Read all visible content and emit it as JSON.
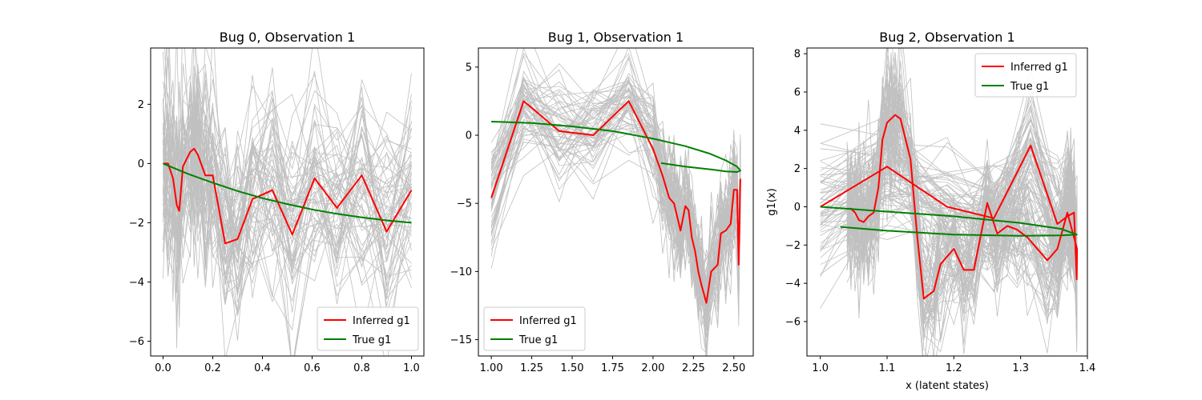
{
  "chart_data": [
    {
      "type": "line",
      "title": "Bug 0, Observation 1",
      "xlabel": "",
      "ylabel": "",
      "xlim": [
        -0.05,
        1.05
      ],
      "ylim": [
        -6.5,
        3.9
      ],
      "xticks": [
        0.0,
        0.2,
        0.4,
        0.6,
        0.8,
        1.0
      ],
      "xtick_labels": [
        "0.0",
        "0.2",
        "0.4",
        "0.6",
        "0.8",
        "1.0"
      ],
      "yticks": [
        -6,
        -4,
        -2,
        0,
        2
      ],
      "ytick_labels": [
        "−6",
        "−4",
        "−2",
        "0",
        "2"
      ],
      "legend": {
        "position": "lower-right",
        "entries": [
          "Inferred g1",
          "True g1"
        ]
      },
      "series": [
        {
          "name": "Inferred g1",
          "color": "#ff0000",
          "x": [
            0.0,
            0.02,
            0.04,
            0.055,
            0.065,
            0.08,
            0.11,
            0.125,
            0.14,
            0.17,
            0.2,
            0.25,
            0.3,
            0.36,
            0.44,
            0.52,
            0.61,
            0.7,
            0.8,
            0.9,
            1.0
          ],
          "y": [
            0.0,
            0.0,
            -0.5,
            -1.4,
            -1.6,
            -0.1,
            0.4,
            0.5,
            0.3,
            -0.4,
            -0.4,
            -2.7,
            -2.55,
            -1.2,
            -0.9,
            -2.4,
            -0.5,
            -1.5,
            -0.4,
            -2.3,
            -0.9
          ]
        },
        {
          "name": "True g1",
          "color": "#008000",
          "x": [
            0.0,
            0.1,
            0.2,
            0.3,
            0.4,
            0.5,
            0.6,
            0.7,
            0.8,
            0.9,
            1.0
          ],
          "y": [
            0.0,
            -0.35,
            -0.65,
            -0.93,
            -1.17,
            -1.37,
            -1.55,
            -1.7,
            -1.82,
            -1.92,
            -2.0
          ]
        }
      ],
      "samples": {
        "color": "#c0c0c0",
        "count": 60,
        "spread": 1.6,
        "seed": 11
      }
    },
    {
      "type": "line",
      "title": "Bug 1, Observation 1",
      "xlabel": "",
      "ylabel": "",
      "xlim": [
        0.92,
        2.62
      ],
      "ylim": [
        -16.2,
        6.4
      ],
      "xticks": [
        1.0,
        1.25,
        1.5,
        1.75,
        2.0,
        2.25,
        2.5
      ],
      "xtick_labels": [
        "1.00",
        "1.25",
        "1.50",
        "1.75",
        "2.00",
        "2.25",
        "2.50"
      ],
      "yticks": [
        -15,
        -10,
        -5,
        0,
        5
      ],
      "ytick_labels": [
        "−15",
        "−10",
        "−5",
        "0",
        "5"
      ],
      "legend": {
        "position": "lower-left",
        "entries": [
          "Inferred g1",
          "True g1"
        ]
      },
      "series": [
        {
          "name": "Inferred g1",
          "color": "#ff0000",
          "x": [
            1.0,
            1.2,
            1.42,
            1.63,
            1.85,
            2.0,
            2.06,
            2.1,
            2.13,
            2.15,
            2.17,
            2.2,
            2.22,
            2.24,
            2.26,
            2.28,
            2.3,
            2.33,
            2.36,
            2.4,
            2.42,
            2.45,
            2.48,
            2.5,
            2.52,
            2.53,
            2.54
          ],
          "y": [
            -4.6,
            2.5,
            0.3,
            0.0,
            2.5,
            -1.0,
            -3.0,
            -4.6,
            -5.0,
            -6.0,
            -7.0,
            -5.2,
            -5.5,
            -7.5,
            -8.5,
            -10.0,
            -11.0,
            -12.3,
            -10.0,
            -9.5,
            -7.2,
            -7.0,
            -6.5,
            -4.0,
            -4.0,
            -9.5,
            -3.2
          ]
        },
        {
          "name": "True g1",
          "color": "#008000",
          "x": [
            1.0,
            1.25,
            1.5,
            1.75,
            2.0,
            2.2,
            2.35,
            2.45,
            2.52,
            2.54,
            2.52,
            2.45,
            2.35,
            2.2,
            2.05
          ],
          "y": [
            1.0,
            0.9,
            0.65,
            0.3,
            -0.25,
            -0.8,
            -1.35,
            -1.85,
            -2.3,
            -2.6,
            -2.7,
            -2.65,
            -2.5,
            -2.3,
            -2.05
          ]
        }
      ],
      "samples": {
        "color": "#c0c0c0",
        "count": 60,
        "spread": 1.8,
        "seed": 23
      }
    },
    {
      "type": "line",
      "title": "Bug 2, Observation 1",
      "xlabel": "x (latent states)",
      "ylabel": "g1(x)",
      "xlim": [
        0.98,
        1.4
      ],
      "ylim": [
        -7.8,
        8.3
      ],
      "xticks": [
        1.0,
        1.1,
        1.2,
        1.3,
        1.4
      ],
      "xtick_labels": [
        "1.0",
        "1.1",
        "1.2",
        "1.3",
        "1.4"
      ],
      "yticks": [
        -6,
        -4,
        -2,
        0,
        2,
        4,
        6,
        8
      ],
      "ytick_labels": [
        "−6",
        "−4",
        "−2",
        "0",
        "2",
        "4",
        "6",
        "8"
      ],
      "legend": {
        "position": "top-right",
        "entries": [
          "Inferred g1",
          "True g1"
        ]
      },
      "series": [
        {
          "name": "Inferred g1",
          "color": "#ff0000",
          "x": [
            1.0,
            1.1,
            1.19,
            1.26,
            1.315,
            1.355,
            1.37,
            1.375,
            1.38,
            1.384,
            1.3845,
            1.37,
            1.355,
            1.34,
            1.31,
            1.295,
            1.28,
            1.265,
            1.25,
            1.23,
            1.215,
            1.2,
            1.18,
            1.17,
            1.155,
            1.145,
            1.135,
            1.12,
            1.112,
            1.106,
            1.1,
            1.093,
            1.087,
            1.08,
            1.072,
            1.065,
            1.058,
            1.052,
            1.046,
            1.04
          ],
          "y": [
            0.0,
            2.1,
            0.0,
            -0.6,
            3.2,
            -0.9,
            -0.5,
            -0.4,
            -0.3,
            -3.8,
            -2.2,
            -0.3,
            -2.2,
            -2.8,
            -1.6,
            -1.2,
            -1.0,
            -1.4,
            0.2,
            -3.3,
            -3.3,
            -2.2,
            -3.0,
            -4.4,
            -4.8,
            -1.5,
            2.5,
            4.6,
            4.8,
            4.6,
            4.4,
            3.5,
            1.0,
            -0.3,
            -0.5,
            -0.8,
            -0.7,
            -0.3,
            -0.1,
            -0.1
          ]
        },
        {
          "name": "True g1",
          "color": "#008000",
          "x": [
            1.0,
            1.1,
            1.2,
            1.3,
            1.36,
            1.384,
            1.36,
            1.3,
            1.2,
            1.1,
            1.03
          ],
          "y": [
            0.0,
            -0.25,
            -0.5,
            -0.85,
            -1.15,
            -1.45,
            -1.5,
            -1.52,
            -1.45,
            -1.25,
            -1.05
          ]
        }
      ],
      "samples": {
        "color": "#c0c0c0",
        "count": 60,
        "spread": 1.6,
        "seed": 37
      }
    }
  ]
}
